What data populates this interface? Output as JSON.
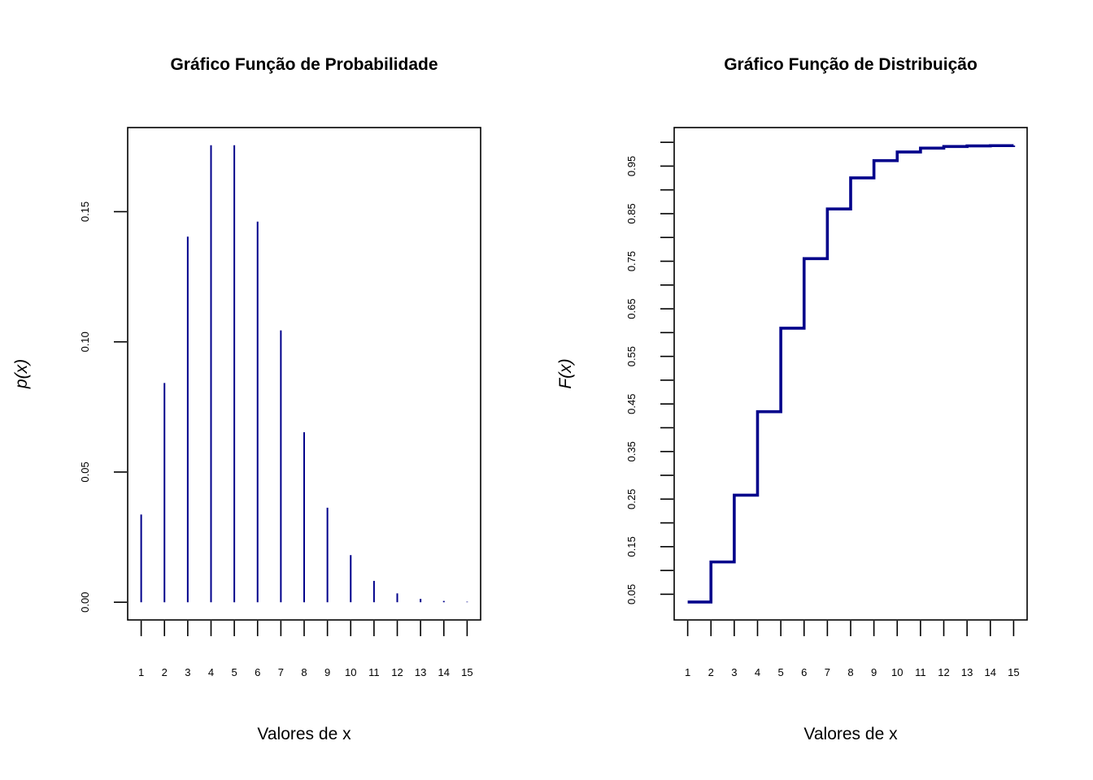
{
  "colors": {
    "series": "#00008B",
    "axis": "#000000",
    "background": "#FFFFFF"
  },
  "chart_data": [
    {
      "type": "bar",
      "style": "vertical-lines",
      "title": "Gráfico Função de Probabilidade",
      "xlabel": "Valores de x",
      "ylabel": "p(x)",
      "categories": [
        "1",
        "2",
        "3",
        "4",
        "5",
        "6",
        "7",
        "8",
        "9",
        "10",
        "11",
        "12",
        "13",
        "14",
        "15"
      ],
      "x": [
        1,
        2,
        3,
        4,
        5,
        6,
        7,
        8,
        9,
        10,
        11,
        12,
        13,
        14,
        15
      ],
      "values": [
        0.0337,
        0.0842,
        0.1404,
        0.1755,
        0.1755,
        0.1462,
        0.1044,
        0.0653,
        0.0363,
        0.0181,
        0.0082,
        0.0034,
        0.0013,
        0.0005,
        0.0002
      ],
      "xlim": [
        0.42,
        15.58
      ],
      "ylim": [
        -0.0068,
        0.1823
      ],
      "yticks": [
        0.0,
        0.05,
        0.1,
        0.15
      ],
      "ytick_labels": [
        "0.00",
        "0.05",
        "0.10",
        "0.15"
      ],
      "grid": false,
      "legend": "none"
    },
    {
      "type": "line",
      "style": "step",
      "title": "Gráfico Função de Distribuição",
      "xlabel": "Valores de x",
      "ylabel": "F(x)",
      "categories": [
        "1",
        "2",
        "3",
        "4",
        "5",
        "6",
        "7",
        "8",
        "9",
        "10",
        "11",
        "12",
        "13",
        "14",
        "15"
      ],
      "x": [
        1,
        2,
        3,
        4,
        5,
        6,
        7,
        8,
        9,
        10,
        11,
        12,
        13,
        14,
        15
      ],
      "values": [
        0.0337,
        0.1179,
        0.2583,
        0.4338,
        0.6093,
        0.7555,
        0.8599,
        0.9252,
        0.9615,
        0.9796,
        0.9878,
        0.9912,
        0.9925,
        0.993,
        0.9932
      ],
      "xlim": [
        0.42,
        15.58
      ],
      "ylim": [
        -0.004,
        1.031
      ],
      "yticks": [
        0.05,
        0.1,
        0.15,
        0.2,
        0.25,
        0.3,
        0.35,
        0.4,
        0.45,
        0.5,
        0.55,
        0.6,
        0.65,
        0.7,
        0.75,
        0.8,
        0.85,
        0.9,
        0.95,
        1.0
      ],
      "ytick_labels": [
        "0.05",
        "",
        "0.15",
        "",
        "0.25",
        "",
        "0.35",
        "",
        "0.45",
        "",
        "0.55",
        "",
        "0.65",
        "",
        "0.75",
        "",
        "0.85",
        "",
        "0.95",
        ""
      ],
      "grid": false,
      "legend": "none"
    }
  ]
}
